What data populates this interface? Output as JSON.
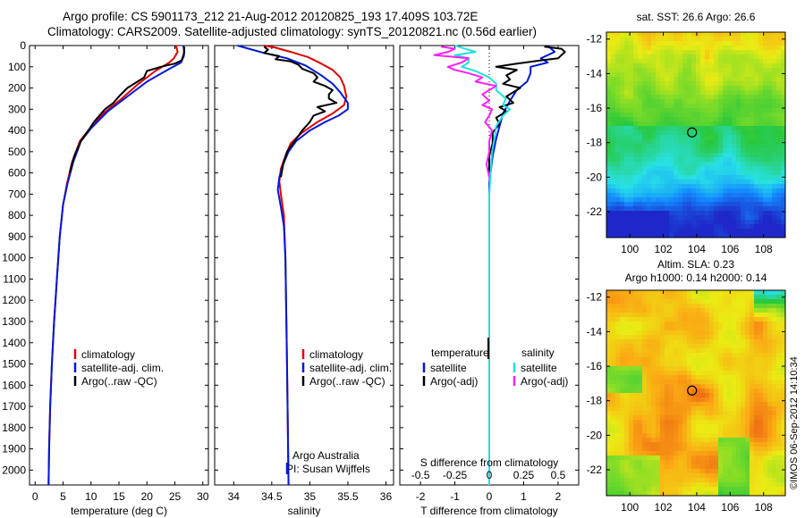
{
  "header": {
    "title_line1": "Argo profile: CS 5901173_212 21-Aug-2012 20120825_193 17.409S 103.72E",
    "title_line2": "Climatology: CARS2009. Satellite-adjusted climatology: synTS_20120821.nc (0.56d earlier)"
  },
  "credit": {
    "text": "©IMOS 06-Sep-2012 14:10:34"
  },
  "colors": {
    "climatology": "#e00000",
    "satellite": "#0018d8",
    "argo": "#000000",
    "salinity_satellite": "#20e0e0",
    "salinity_argo": "#ff20ff"
  },
  "chart_data": [
    {
      "type": "line",
      "id": "temperature",
      "xlabel": "temperature (deg C)",
      "ylabel": "",
      "xlim": [
        -1,
        31
      ],
      "ylim": [
        2070,
        0
      ],
      "xticks": [
        0,
        5,
        10,
        15,
        20,
        25,
        30
      ],
      "yticks": [
        0,
        100,
        200,
        300,
        400,
        500,
        600,
        700,
        800,
        900,
        1000,
        1100,
        1200,
        1300,
        1400,
        1500,
        1600,
        1700,
        1800,
        1900,
        2000
      ],
      "legend": [
        "climatology",
        "satellite-adj. clim.",
        "Argo(..raw -QC)"
      ],
      "series": [
        {
          "name": "climatology",
          "color": "#e00000",
          "points": [
            [
              25.2,
              0
            ],
            [
              25.5,
              30
            ],
            [
              24.8,
              60
            ],
            [
              24.0,
              80
            ],
            [
              21.5,
              120
            ],
            [
              18.5,
              180
            ],
            [
              15.5,
              250
            ],
            [
              12.2,
              320
            ],
            [
              9.5,
              400
            ],
            [
              8.0,
              450
            ],
            [
              6.6,
              550
            ],
            [
              5.7,
              650
            ],
            [
              5.0,
              750
            ],
            [
              4.4,
              900
            ],
            [
              3.9,
              1100
            ],
            [
              3.4,
              1300
            ],
            [
              3.0,
              1500
            ],
            [
              2.7,
              1700
            ],
            [
              2.5,
              1900
            ],
            [
              2.4,
              2070
            ]
          ]
        },
        {
          "name": "satellite-adj. clim.",
          "color": "#0018d8",
          "points": [
            [
              26.5,
              0
            ],
            [
              26.7,
              30
            ],
            [
              26.6,
              50
            ],
            [
              26.1,
              80
            ],
            [
              24.0,
              110
            ],
            [
              20.0,
              170
            ],
            [
              16.5,
              240
            ],
            [
              13.0,
              310
            ],
            [
              10.0,
              390
            ],
            [
              8.2,
              450
            ],
            [
              6.8,
              550
            ],
            [
              5.8,
              650
            ],
            [
              5.0,
              750
            ],
            [
              4.4,
              900
            ],
            [
              3.9,
              1100
            ],
            [
              3.4,
              1300
            ],
            [
              3.0,
              1500
            ],
            [
              2.7,
              1700
            ],
            [
              2.5,
              1900
            ],
            [
              2.4,
              2070
            ]
          ]
        },
        {
          "name": "Argo(..raw -QC)",
          "color": "#000000",
          "points": [
            [
              26.7,
              5
            ],
            [
              26.6,
              40
            ],
            [
              26.2,
              70
            ],
            [
              25.0,
              85
            ],
            [
              22.5,
              100
            ],
            [
              20.0,
              120
            ],
            [
              19.5,
              150
            ],
            [
              18.0,
              175
            ],
            [
              16.5,
              200
            ],
            [
              15.0,
              240
            ],
            [
              14.0,
              270
            ],
            [
              12.5,
              300
            ],
            [
              11.5,
              330
            ],
            [
              10.5,
              360
            ],
            [
              9.8,
              390
            ],
            [
              9.0,
              420
            ],
            [
              8.2,
              450
            ],
            [
              7.0,
              520
            ],
            [
              6.2,
              600
            ]
          ]
        }
      ]
    },
    {
      "type": "line",
      "id": "salinity",
      "xlabel": "salinity",
      "ylabel": "",
      "xlim": [
        33.75,
        36.1
      ],
      "ylim": [
        2070,
        0
      ],
      "xticks": [
        34,
        34.5,
        35,
        35.5,
        36
      ],
      "yticks": [
        0,
        100,
        200,
        300,
        400,
        500,
        600,
        700,
        800,
        900,
        1000,
        1100,
        1200,
        1300,
        1400,
        1500,
        1600,
        1700,
        1800,
        1900,
        2000
      ],
      "legend": [
        "climatology",
        "satellite-adj. clim.",
        "Argo(..raw -QC)"
      ],
      "annotation": [
        "Argo Australia",
        "PI: Susan Wijffels"
      ],
      "series": [
        {
          "name": "climatology",
          "color": "#e00000",
          "points": [
            [
              34.4,
              0
            ],
            [
              34.55,
              10
            ],
            [
              34.75,
              30
            ],
            [
              34.98,
              55
            ],
            [
              35.15,
              85
            ],
            [
              35.3,
              115
            ],
            [
              35.4,
              150
            ],
            [
              35.45,
              190
            ],
            [
              35.48,
              240
            ],
            [
              35.45,
              280
            ],
            [
              35.3,
              320
            ],
            [
              35.1,
              360
            ],
            [
              34.9,
              410
            ],
            [
              34.75,
              460
            ],
            [
              34.68,
              520
            ],
            [
              34.62,
              580
            ],
            [
              34.6,
              640
            ],
            [
              34.62,
              700
            ],
            [
              34.66,
              800
            ],
            [
              34.68,
              1000
            ],
            [
              34.7,
              1500
            ],
            [
              34.72,
              2070
            ]
          ]
        },
        {
          "name": "satellite-adj. clim.",
          "color": "#0018d8",
          "points": [
            [
              34.05,
              0
            ],
            [
              34.2,
              15
            ],
            [
              34.4,
              35
            ],
            [
              34.7,
              60
            ],
            [
              34.95,
              95
            ],
            [
              35.15,
              140
            ],
            [
              35.3,
              180
            ],
            [
              35.4,
              220
            ],
            [
              35.5,
              270
            ],
            [
              35.5,
              300
            ],
            [
              35.38,
              330
            ],
            [
              35.2,
              360
            ],
            [
              35.0,
              400
            ],
            [
              34.82,
              450
            ],
            [
              34.72,
              500
            ],
            [
              34.65,
              560
            ],
            [
              34.6,
              620
            ],
            [
              34.58,
              680
            ],
            [
              34.62,
              760
            ],
            [
              34.66,
              850
            ],
            [
              34.68,
              1000
            ],
            [
              34.7,
              1500
            ],
            [
              34.72,
              2070
            ]
          ]
        },
        {
          "name": "Argo(..raw -QC)",
          "color": "#000000",
          "points": [
            [
              34.4,
              5
            ],
            [
              34.45,
              20
            ],
            [
              34.4,
              35
            ],
            [
              34.6,
              50
            ],
            [
              34.55,
              65
            ],
            [
              34.75,
              75
            ],
            [
              34.85,
              90
            ],
            [
              34.9,
              110
            ],
            [
              35.05,
              130
            ],
            [
              35.1,
              150
            ],
            [
              35.05,
              170
            ],
            [
              35.2,
              190
            ],
            [
              35.3,
              210
            ],
            [
              35.25,
              230
            ],
            [
              35.25,
              250
            ],
            [
              35.35,
              270
            ],
            [
              35.1,
              290
            ],
            [
              35.2,
              310
            ],
            [
              35.05,
              330
            ],
            [
              35.0,
              360
            ],
            [
              34.9,
              400
            ],
            [
              34.8,
              450
            ],
            [
              34.7,
              500
            ],
            [
              34.65,
              560
            ],
            [
              34.62,
              620
            ]
          ]
        }
      ]
    },
    {
      "type": "line",
      "id": "difference",
      "xlabel": "T difference from climatology",
      "xlabel_top": "S difference from climatology",
      "xlim": [
        -2.6,
        2.6
      ],
      "ylim": [
        2070,
        0
      ],
      "xticks": [
        -2,
        -1,
        0,
        1,
        2
      ],
      "xticks_salinity": [
        -0.5,
        -0.25,
        0,
        0.25,
        0.5
      ],
      "xtick_labels_salinity": [
        "-0.5",
        "-0.25",
        "0",
        "0.25",
        "0.5"
      ],
      "yticks": [
        0,
        100,
        200,
        300,
        400,
        500,
        600,
        700,
        800,
        900,
        1000,
        1100,
        1200,
        1300,
        1400,
        1500,
        1600,
        1700,
        1800,
        1900,
        2000
      ],
      "legend_temperature": {
        "title": "temperature",
        "items": [
          "satellite",
          "Argo(-adj)"
        ]
      },
      "legend_salinity": {
        "title": "salinity",
        "items": [
          "satellite",
          "Argo(-adj)"
        ]
      },
      "series": [
        {
          "name": "T satellite",
          "color": "#0018d8",
          "points": [
            [
              1.7,
              0
            ],
            [
              1.9,
              30
            ],
            [
              1.5,
              60
            ],
            [
              1.7,
              80
            ],
            [
              1.2,
              100
            ],
            [
              1.2,
              130
            ],
            [
              1.1,
              170
            ],
            [
              0.8,
              210
            ],
            [
              0.6,
              260
            ],
            [
              0.4,
              320
            ],
            [
              0.3,
              380
            ],
            [
              0.2,
              440
            ],
            [
              0.1,
              520
            ],
            [
              0.0,
              650
            ],
            [
              0.0,
              2070
            ]
          ]
        },
        {
          "name": "T Argo(-adj)",
          "color": "#000000",
          "points": [
            [
              1.6,
              5
            ],
            [
              2.1,
              15
            ],
            [
              2.2,
              30
            ],
            [
              2.0,
              60
            ],
            [
              1.5,
              70
            ],
            [
              0.8,
              85
            ],
            [
              0.2,
              100
            ],
            [
              0.8,
              115
            ],
            [
              0.5,
              140
            ],
            [
              0.6,
              160
            ],
            [
              0.4,
              180
            ],
            [
              0.9,
              200
            ],
            [
              0.5,
              240
            ],
            [
              0.7,
              270
            ],
            [
              0.3,
              290
            ],
            [
              0.5,
              310
            ],
            [
              0.2,
              340
            ],
            [
              0.3,
              370
            ],
            [
              0.1,
              410
            ],
            [
              0.1,
              460
            ],
            [
              0.0,
              520
            ],
            [
              0.0,
              600
            ]
          ]
        },
        {
          "name": "S satellite",
          "color": "#20e0e0",
          "points": [
            [
              -0.25,
              0
            ],
            [
              -0.2,
              10
            ],
            [
              -0.1,
              30
            ],
            [
              -0.25,
              45
            ],
            [
              -0.15,
              60
            ],
            [
              -0.15,
              80
            ],
            [
              -0.2,
              100
            ],
            [
              -0.1,
              120
            ],
            [
              0.0,
              150
            ],
            [
              0.05,
              180
            ],
            [
              0.05,
              210
            ],
            [
              0.12,
              250
            ],
            [
              0.1,
              280
            ],
            [
              0.15,
              300
            ],
            [
              0.1,
              330
            ],
            [
              0.05,
              380
            ],
            [
              0.04,
              430
            ],
            [
              0.02,
              500
            ],
            [
              0.01,
              600
            ],
            [
              0.0,
              700
            ],
            [
              0.0,
              2070
            ]
          ]
        },
        {
          "name": "S Argo(-adj)",
          "color": "#ff20ff",
          "points": [
            [
              -0.35,
              5
            ],
            [
              -0.25,
              15
            ],
            [
              -0.3,
              30
            ],
            [
              -0.4,
              45
            ],
            [
              -0.15,
              60
            ],
            [
              -0.2,
              80
            ],
            [
              -0.3,
              100
            ],
            [
              -0.25,
              115
            ],
            [
              -0.15,
              130
            ],
            [
              -0.05,
              150
            ],
            [
              -0.1,
              170
            ],
            [
              0.05,
              190
            ],
            [
              0.0,
              210
            ],
            [
              -0.05,
              230
            ],
            [
              0.0,
              260
            ],
            [
              -0.05,
              280
            ],
            [
              0.02,
              300
            ],
            [
              0.0,
              330
            ],
            [
              -0.03,
              360
            ],
            [
              0.02,
              400
            ],
            [
              0.0,
              450
            ],
            [
              0.0,
              500
            ],
            [
              -0.02,
              560
            ],
            [
              0.0,
              620
            ]
          ]
        }
      ]
    },
    {
      "type": "heatmap",
      "id": "sst_map",
      "title": "sat. SST: 26.6 Argo: 26.6",
      "xlim": [
        98.6,
        109.3
      ],
      "ylim": [
        -23.5,
        -11.6
      ],
      "xticks": [
        100,
        102,
        104,
        106,
        108
      ],
      "yticks": [
        -12,
        -14,
        -16,
        -18,
        -20,
        -22
      ],
      "marker": {
        "lon": 103.72,
        "lat": -17.409
      }
    },
    {
      "type": "heatmap",
      "id": "sla_map",
      "title": "Altim. SLA: 0.23",
      "subtitle": "Argo h1000: 0.14 h2000: 0.14",
      "xlim": [
        98.6,
        109.3
      ],
      "ylim": [
        -23.5,
        -11.6
      ],
      "xticks": [
        100,
        102,
        104,
        106,
        108
      ],
      "yticks": [
        -12,
        -14,
        -16,
        -18,
        -20,
        -22
      ],
      "marker": {
        "lon": 103.72,
        "lat": -17.409
      }
    }
  ]
}
